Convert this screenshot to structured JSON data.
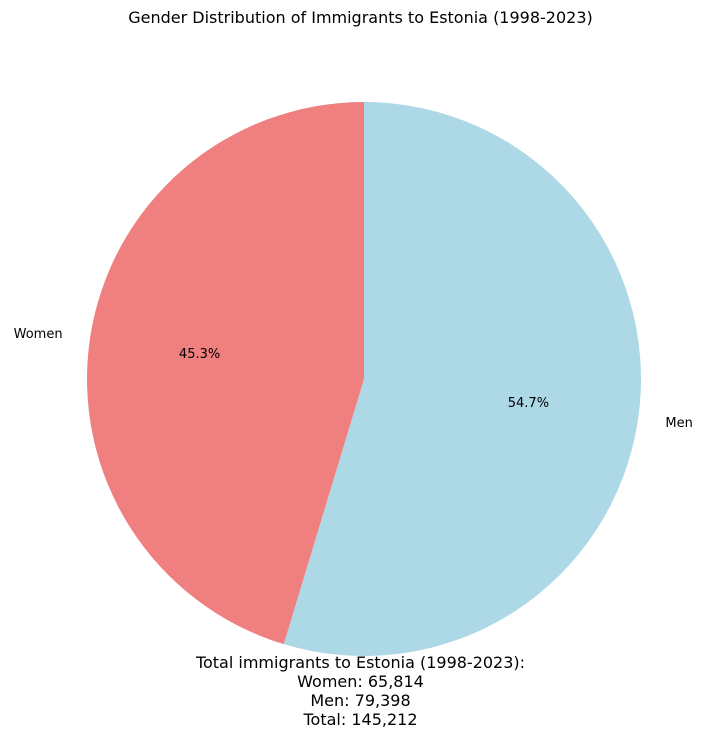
{
  "chart_data": {
    "type": "pie",
    "title": "Gender Distribution of Immigrants to Estonia (1998-2023)",
    "start_angle_deg": 90,
    "direction": "clockwise-from-top",
    "slices": [
      {
        "label": "Men",
        "value": 79398,
        "pct_label": "54.7%",
        "color": "#add8e6"
      },
      {
        "label": "Women",
        "value": 65814,
        "pct_label": "45.3%",
        "color": "#f08080"
      }
    ]
  },
  "summary": {
    "heading": "Total immigrants to Estonia (1998-2023):",
    "women_line": "Women: 65,814",
    "men_line": "Men: 79,398",
    "total_line": "Total: 145,212"
  }
}
